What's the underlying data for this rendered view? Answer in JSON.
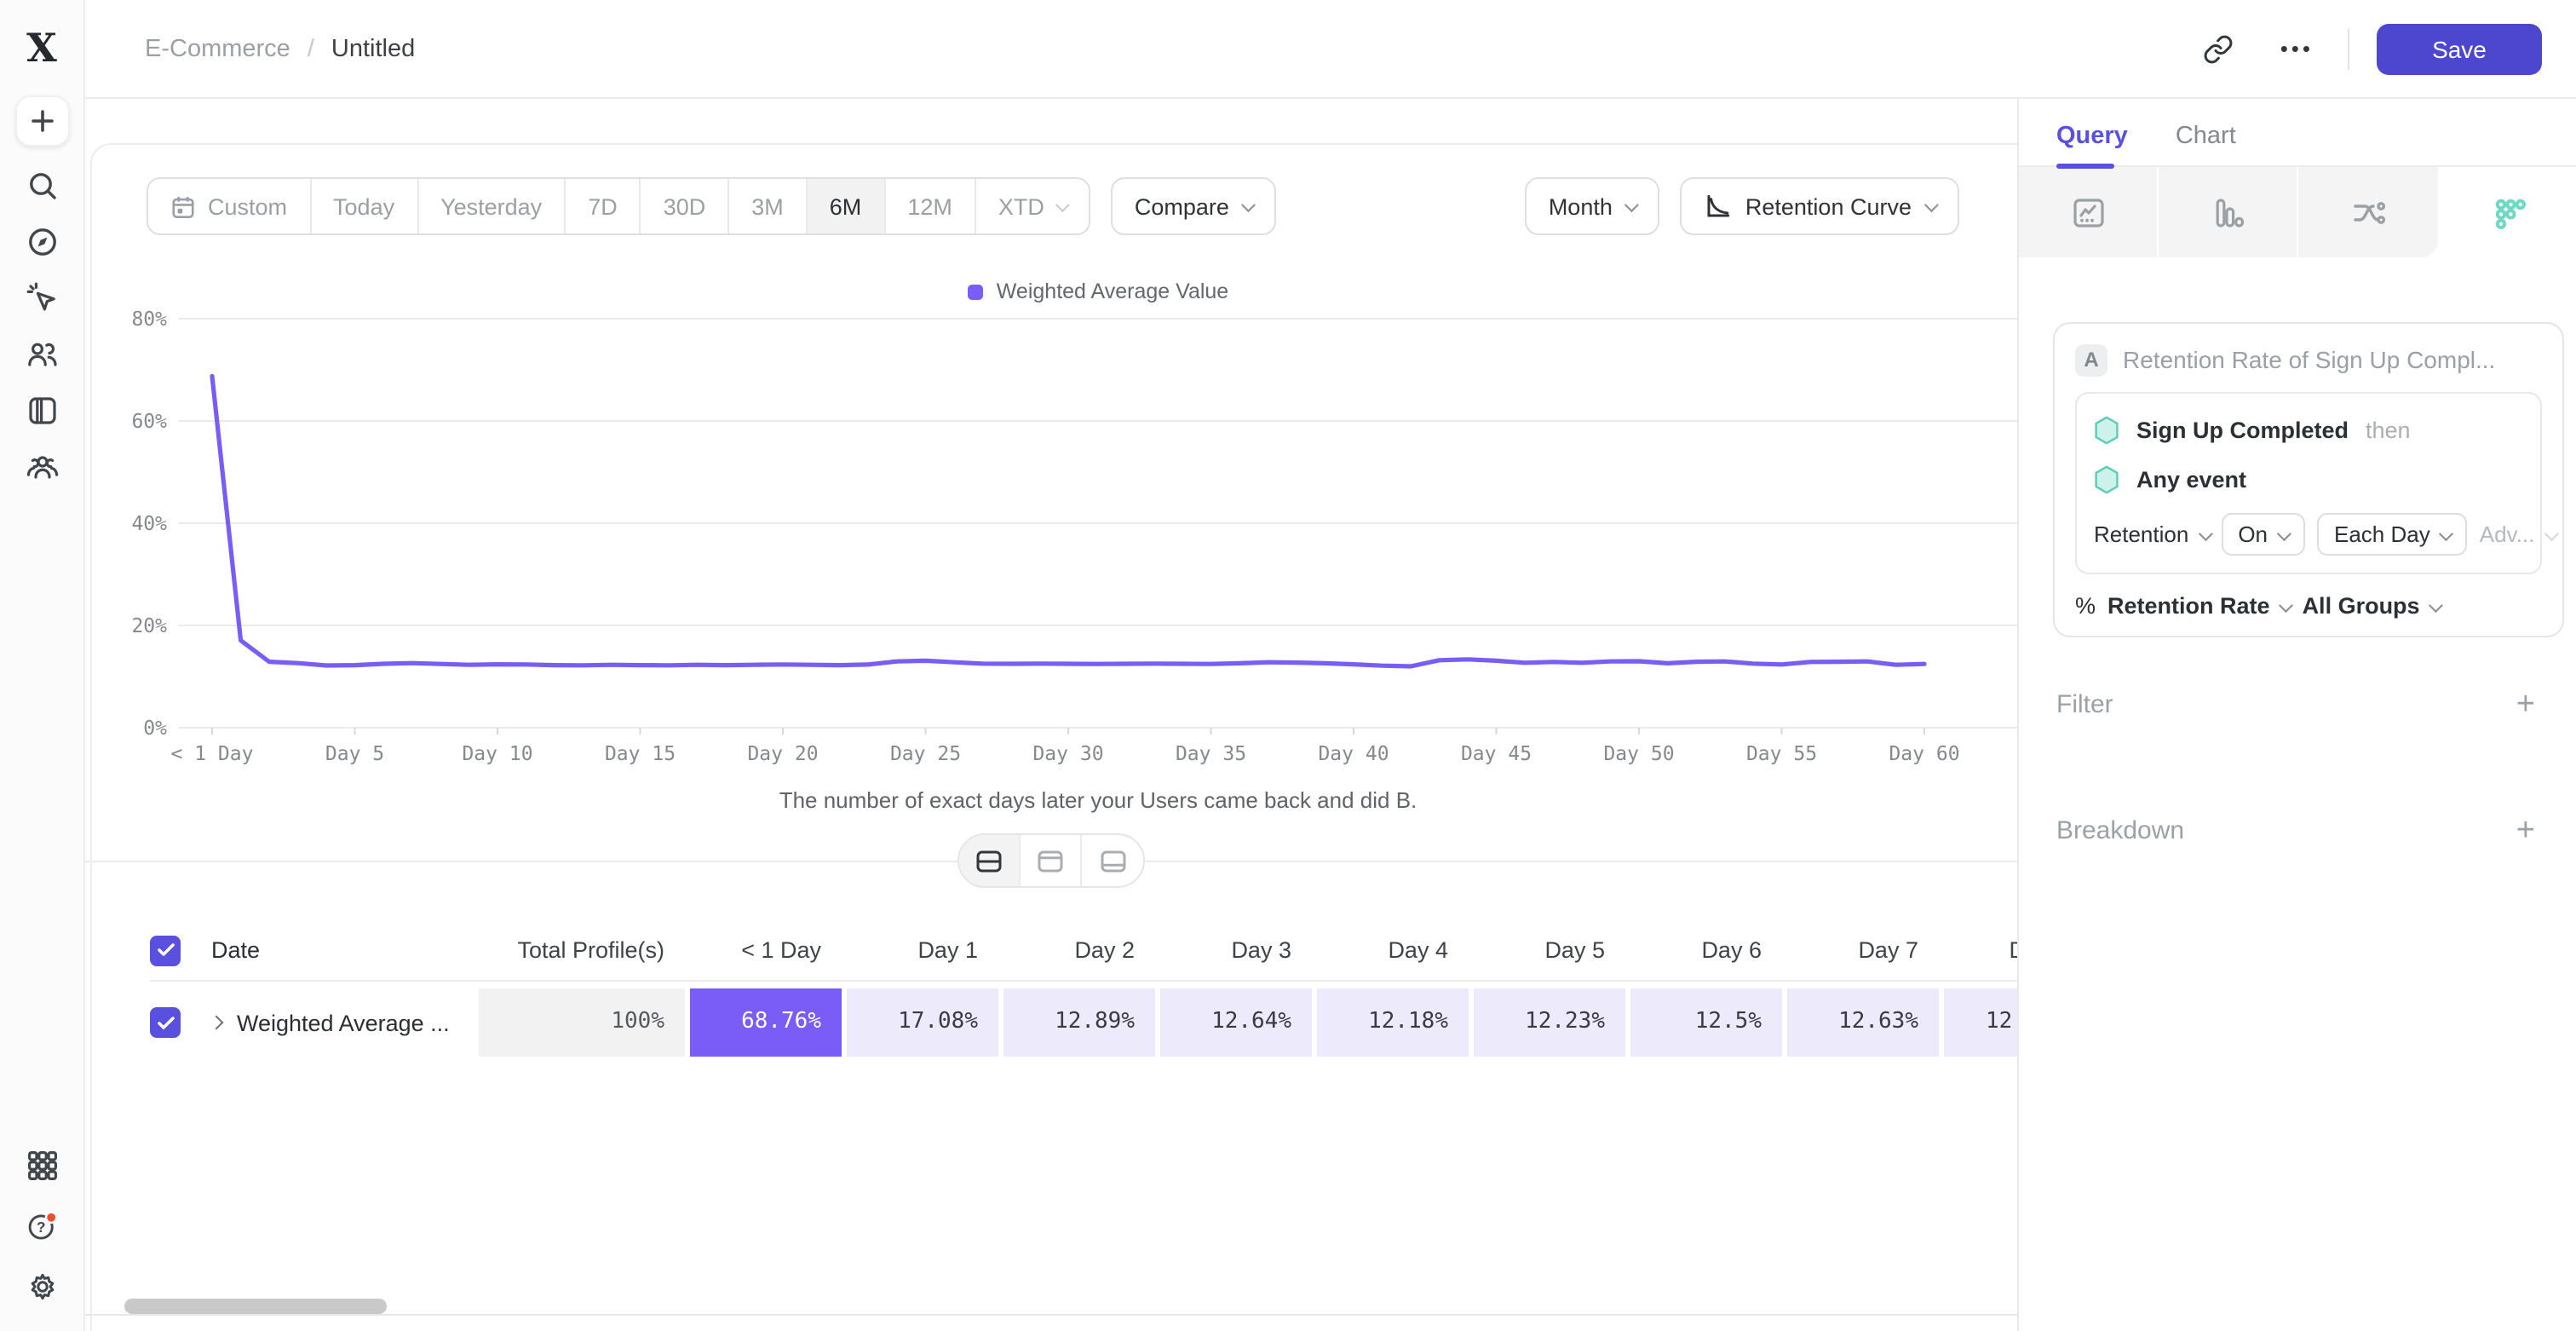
{
  "app": {
    "breadcrumb": {
      "project": "E-Commerce",
      "separator": "/",
      "title": "Untitled"
    },
    "actions": {
      "ellipsis": "•••",
      "save_label": "Save"
    },
    "colors": {
      "accent": "#5A50E0",
      "viz_purple": "#7A5CF6",
      "save_button": "#4D46CF",
      "teal": "#5FCBB7",
      "notification_red": "#E8502E"
    }
  },
  "sidebar": {
    "icons": [
      "mixpanel-logo",
      "plus",
      "search",
      "compass",
      "cursor-click",
      "users",
      "boards",
      "cohorts",
      "apps-grid",
      "help",
      "settings"
    ],
    "logo_glyph": "X"
  },
  "controls": {
    "ranges": [
      {
        "label": "Custom",
        "icon": "calendar"
      },
      {
        "label": "Today"
      },
      {
        "label": "Yesterday"
      },
      {
        "label": "7D"
      },
      {
        "label": "30D"
      },
      {
        "label": "3M"
      },
      {
        "label": "6M",
        "active": true
      },
      {
        "label": "12M"
      },
      {
        "label": "XTD",
        "has_chevron": true
      }
    ],
    "compare_label": "Compare",
    "granularity_label": "Month",
    "chart_type_label": "Retention Curve"
  },
  "chart_data": {
    "type": "line",
    "title": "",
    "legend": [
      "Weighted Average Value"
    ],
    "legend_position": "top",
    "grid": "horizontal",
    "x_unit": "day",
    "x_range": [
      0,
      60
    ],
    "x_tick_days": [
      0,
      5,
      10,
      15,
      20,
      25,
      30,
      35,
      40,
      45,
      50,
      55,
      60
    ],
    "x_tick_labels": [
      "< 1 Day",
      "Day 5",
      "Day 10",
      "Day 15",
      "Day 20",
      "Day 25",
      "Day 30",
      "Day 35",
      "Day 40",
      "Day 45",
      "Day 50",
      "Day 55",
      "Day 60"
    ],
    "ylim": [
      0,
      80
    ],
    "y_ticks": [
      "0%",
      "20%",
      "40%",
      "60%",
      "80%"
    ],
    "xlabel": "The number of exact days later your Users came back and did B.",
    "series": [
      {
        "name": "Weighted Average Value",
        "color": "#7A5CF6",
        "values": [
          68.76,
          17.08,
          12.89,
          12.64,
          12.18,
          12.23,
          12.5,
          12.63,
          12.45,
          12.3,
          12.4,
          12.35,
          12.25,
          12.2,
          12.3,
          12.25,
          12.2,
          12.3,
          12.25,
          12.3,
          12.35,
          12.3,
          12.25,
          12.35,
          12.95,
          13.1,
          12.8,
          12.55,
          12.5,
          12.55,
          12.5,
          12.45,
          12.5,
          12.55,
          12.5,
          12.45,
          12.6,
          12.8,
          12.75,
          12.6,
          12.4,
          12.15,
          12.0,
          13.2,
          13.35,
          13.1,
          12.7,
          12.85,
          12.7,
          12.95,
          13.0,
          12.6,
          12.9,
          12.95,
          12.55,
          12.35,
          12.85,
          12.9,
          12.95,
          12.3,
          12.45
        ]
      }
    ]
  },
  "view_toggle": {
    "options": [
      "split-view",
      "chart-only",
      "table-only"
    ],
    "active": "split-view"
  },
  "table": {
    "columns": [
      "Date",
      "Total Profile(s)",
      "< 1 Day",
      "Day 1",
      "Day 2",
      "Day 3",
      "Day 4",
      "Day 5",
      "Day 6",
      "Day 7",
      "D"
    ],
    "rows": [
      {
        "name": "Weighted Average ...",
        "checked": true,
        "values": [
          "100%",
          "68.76%",
          "17.08%",
          "12.89%",
          "12.64%",
          "12.18%",
          "12.23%",
          "12.5%",
          "12.63%",
          "12."
        ]
      }
    ]
  },
  "panel": {
    "tabs": [
      {
        "label": "Query",
        "active": true
      },
      {
        "label": "Chart",
        "active": false
      }
    ],
    "chart_type_tabs": [
      "insights",
      "funnels",
      "flows",
      "retention"
    ],
    "active_chart_type": "retention",
    "query": {
      "badge": "A",
      "title": "Retention Rate of Sign Up Compl...",
      "first_event": "Sign Up Completed",
      "then_label": "then",
      "return_event": "Any event",
      "controls": [
        {
          "label": "Retention",
          "style": "plain"
        },
        {
          "label": "On",
          "style": "pill"
        },
        {
          "label": "Each Day",
          "style": "pill"
        },
        {
          "label": "Adv...",
          "style": "muted"
        }
      ],
      "measure_prefix": "%",
      "measure": "Retention Rate",
      "groups": "All Groups"
    },
    "sections": [
      {
        "label": "Filter",
        "action": "+"
      },
      {
        "label": "Breakdown",
        "action": "+"
      }
    ]
  }
}
